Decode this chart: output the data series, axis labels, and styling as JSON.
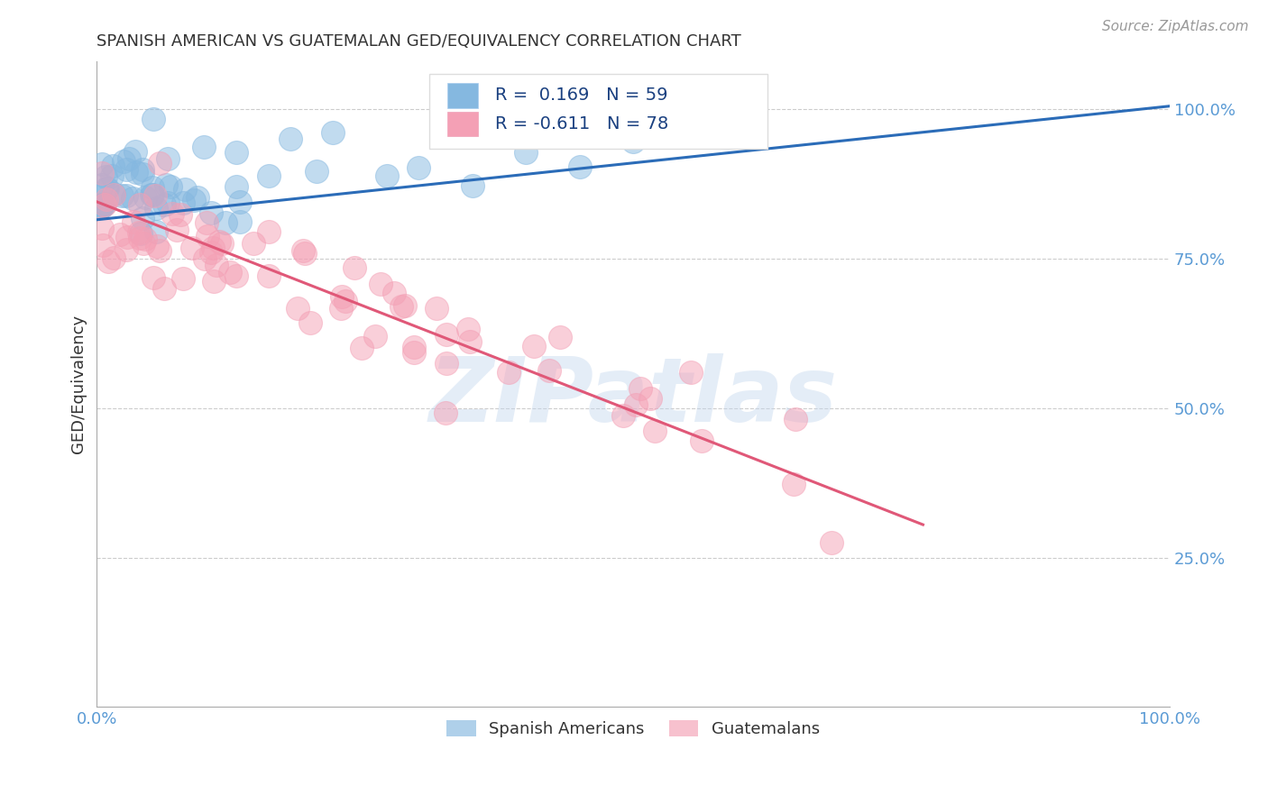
{
  "title": "SPANISH AMERICAN VS GUATEMALAN GED/EQUIVALENCY CORRELATION CHART",
  "source": "Source: ZipAtlas.com",
  "ylabel": "GED/Equivalency",
  "xlim": [
    0.0,
    1.0
  ],
  "ylim": [
    0.0,
    1.08
  ],
  "yticks": [
    0.25,
    0.5,
    0.75,
    1.0
  ],
  "ytick_labels": [
    "25.0%",
    "50.0%",
    "75.0%",
    "100.0%"
  ],
  "xtick_labels": [
    "0.0%",
    "100.0%"
  ],
  "r_spanish": 0.169,
  "n_spanish": 59,
  "r_guatemalan": -0.611,
  "n_guatemalan": 78,
  "spanish_color": "#85b8e0",
  "guatemalan_color": "#f4a0b5",
  "trend_spanish_color": "#2b6cb8",
  "trend_guatemalan_color": "#e05878",
  "legend_label_spanish": "Spanish Americans",
  "legend_label_guatemalan": "Guatemalans",
  "watermark": "ZIPatlas",
  "background_color": "#ffffff",
  "grid_color": "#cccccc",
  "title_color": "#333333",
  "ylabel_color": "#333333",
  "tick_color": "#5b9bd5",
  "sp_trend_x0": 0.0,
  "sp_trend_y0": 0.815,
  "sp_trend_x1": 1.0,
  "sp_trend_y1": 1.005,
  "gt_trend_x0": 0.0,
  "gt_trend_y0": 0.845,
  "gt_trend_x1": 0.77,
  "gt_trend_y1": 0.305
}
